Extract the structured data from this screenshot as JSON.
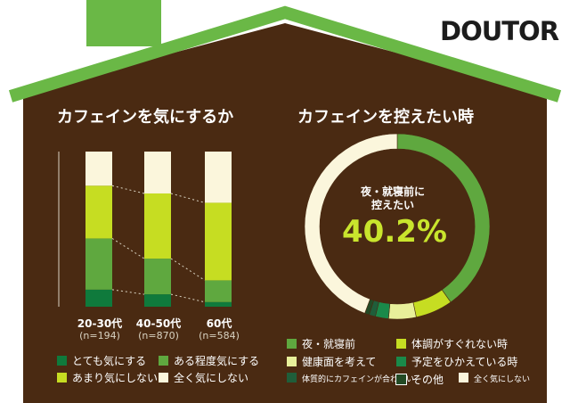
{
  "logo": "DOUTOR",
  "colors": {
    "background": "#ffffff",
    "house": "#4a2a12",
    "roof": "#6ab846",
    "c_very": "#0f7a3c",
    "c_some": "#5fa83f",
    "c_little": "#c6dd22",
    "c_none": "#fbf6dc",
    "c_health": "#e8f09a",
    "c_plan": "#1a8a4a",
    "c_incompat": "#1f5e3a",
    "c_other": "#234a25"
  },
  "left": {
    "title": "カフェインを気にするか",
    "bars": [
      {
        "label": "20-30代",
        "n": "(n=194)"
      },
      {
        "label": "40-50代",
        "n": "(n=870)"
      },
      {
        "label": "60代",
        "n": "(n=584)"
      }
    ],
    "legend": [
      "とても気にする",
      "ある程度気にする",
      "あまり気にしない",
      "全く気にしない"
    ]
  },
  "right": {
    "title": "カフェインを控えたい時",
    "center_label_1": "夜・就寝前に",
    "center_label_2": "控えたい",
    "center_value": "40.2%",
    "legend": [
      {
        "text": "夜・就寝前",
        "color": "c_some"
      },
      {
        "text": "体調がすぐれない時",
        "color": "c_little"
      },
      {
        "text": "健康面を考えて",
        "color": "c_health"
      },
      {
        "text": "予定をひかえている時",
        "color": "c_plan"
      },
      {
        "text": "体質的にカフェインが合わない",
        "color": "c_incompat"
      },
      {
        "text": "その他",
        "color": "c_other"
      },
      {
        "text": "全く気にしない",
        "color": "c_none"
      }
    ]
  },
  "chart_data": [
    {
      "type": "bar",
      "stacked": true,
      "title": "カフェインを気にするか",
      "categories": [
        "20-30代",
        "40-50代",
        "60代"
      ],
      "series": [
        {
          "name": "とても気にする",
          "values": [
            11,
            8,
            3
          ]
        },
        {
          "name": "ある程度気にする",
          "values": [
            33,
            23,
            14
          ]
        },
        {
          "name": "あまり気にしない",
          "values": [
            34,
            42,
            50
          ]
        },
        {
          "name": "全く気にしない",
          "values": [
            22,
            27,
            33
          ]
        }
      ],
      "ylim": [
        0,
        100
      ]
    },
    {
      "type": "pie",
      "title": "カフェインを控えたい時",
      "labels": [
        "夜・就寝前",
        "体調がすぐれない時",
        "健康面を考えて",
        "予定をひかえている時",
        "体質的にカフェインが合わない",
        "その他",
        "全く気にしない"
      ],
      "values": [
        40.2,
        6.5,
        4.8,
        2.3,
        1.1,
        0.8,
        44.3
      ]
    }
  ]
}
